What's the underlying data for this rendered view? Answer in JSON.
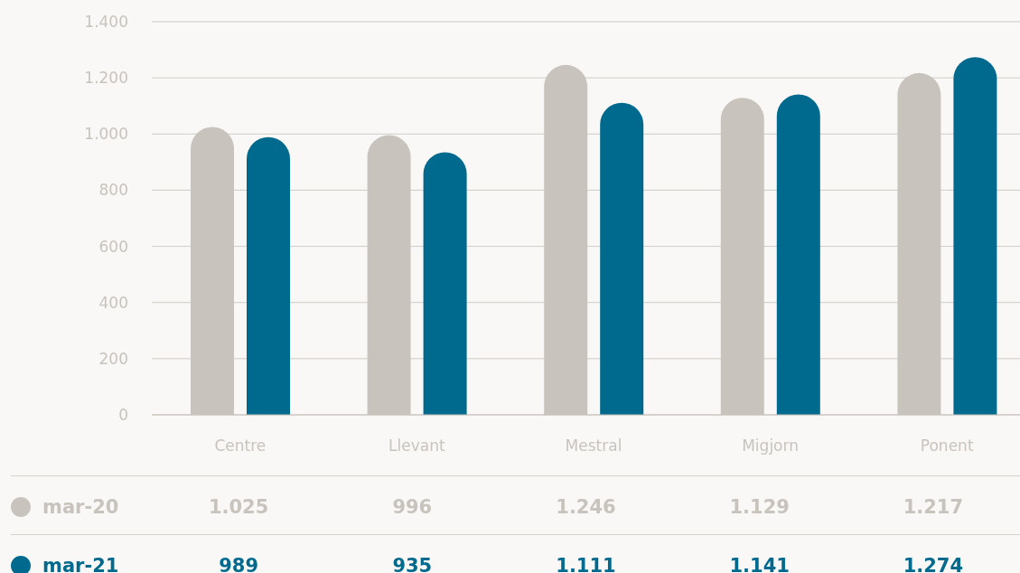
{
  "chart_data": {
    "type": "bar",
    "categories": [
      "Centre",
      "Llevant",
      "Mestral",
      "Migjorn",
      "Ponent"
    ],
    "series": [
      {
        "name": "mar-20",
        "color": "#c8c3bd",
        "values": [
          1025,
          996,
          1246,
          1129,
          1217
        ],
        "value_labels": [
          "1.025",
          "996",
          "1.246",
          "1.129",
          "1.217"
        ]
      },
      {
        "name": "mar-21",
        "color": "#006a8e",
        "values": [
          989,
          935,
          1111,
          1141,
          1274
        ],
        "value_labels": [
          "989",
          "935",
          "1.111",
          "1.141",
          "1.274"
        ]
      }
    ],
    "ylim": [
      0,
      1400
    ],
    "yticks": [
      0,
      200,
      400,
      600,
      800,
      {
        "value": 1000,
        "label": "1.000"
      },
      {
        "value": 1200,
        "label": "1.200"
      },
      {
        "value": 1400,
        "label": "1.400"
      }
    ],
    "grid": "y",
    "legend": "bottom"
  }
}
